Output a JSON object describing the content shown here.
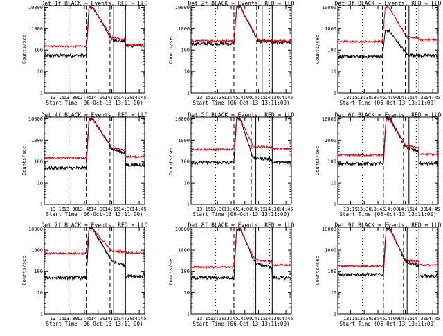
{
  "chart_data": {
    "type": "line",
    "grid_layout": [
      3,
      3
    ],
    "shared": {
      "xlabel": "Start Time (06-Oct-13 13:11:00)",
      "ylabel": "Counts/sec",
      "x_tick_labels": [
        "13:15",
        "13:30",
        "13:45",
        "14:00",
        "14:15",
        "14:30",
        "14:45"
      ],
      "x_ticks_min": [
        14,
        29,
        44,
        59,
        74,
        89,
        104
      ],
      "xlim_min": [
        0,
        110
      ],
      "y_tick_labels": [
        "1",
        "10",
        "100",
        "1000",
        "10000"
      ],
      "y_ticks": [
        1,
        10,
        100,
        1000,
        10000
      ],
      "ylim": [
        1,
        12000
      ],
      "yscale": "log",
      "dotted_lines_min": [
        27,
        86
      ],
      "dashed_lines_min": [
        46
      ],
      "solid_lines_min": [
        76,
        89
      ],
      "series_colors": {
        "events": "#000000",
        "lld": "#e0000f"
      }
    },
    "panels": [
      {
        "title": "Det 1f BLACK = Events, RED = LLD",
        "flare_start": 46,
        "dashed2": 72,
        "solid": 76,
        "events": {
          "pre": 55,
          "peak": 10000,
          "post": 300,
          "end": 160
        },
        "lld": {
          "pre": 150,
          "peak": 10000,
          "post": 400,
          "end": 180
        }
      },
      {
        "title": "Det 2f BLACK = Events, RED = LLD",
        "flare_start": 47,
        "dashed2": 72,
        "solid": 78,
        "events": {
          "pre": 200,
          "peak": 10000,
          "post": 250,
          "end": 230
        },
        "lld": {
          "pre": 270,
          "peak": 10000,
          "post": 280,
          "end": 270
        }
      },
      {
        "title": "Det 3f BLACK = Events, RED = LLD",
        "flare_start": 49,
        "dashed2": 74,
        "solid": 78,
        "events": {
          "pre": 50,
          "peak": 800,
          "post": 60,
          "end": 55
        },
        "lld": {
          "pre": 250,
          "peak": 10000,
          "post": 400,
          "end": 300
        }
      },
      {
        "title": "Det 4f BLACK = Events, RED = LLD",
        "flare_start": 46,
        "dashed2": 72,
        "solid": 76,
        "events": {
          "pre": 50,
          "peak": 10000,
          "post": 400,
          "end": 70
        },
        "lld": {
          "pre": 150,
          "peak": 10000,
          "post": 450,
          "end": 170
        }
      },
      {
        "title": "Det 5f BLACK = Events, RED = LLD",
        "flare_start": 47,
        "dashed2": 66,
        "solid": 71,
        "events": {
          "pre": 90,
          "peak": 10000,
          "post": 150,
          "end": 90
        },
        "lld": {
          "pre": 370,
          "peak": 10000,
          "post": 500,
          "end": 400
        }
      },
      {
        "title": "Det 6f BLACK = Events, RED = LLD",
        "flare_start": 50,
        "dashed2": 72,
        "solid": 78,
        "events": {
          "pre": 80,
          "peak": 10000,
          "post": 500,
          "end": 80
        },
        "lld": {
          "pre": 200,
          "peak": 10000,
          "post": 600,
          "end": 220
        }
      },
      {
        "title": "Det 7f BLACK = Events, RED = LLD",
        "flare_start": 46,
        "dashed2": 72,
        "solid": 76,
        "events": {
          "pre": 50,
          "peak": 10000,
          "post": 300,
          "end": 60
        },
        "lld": {
          "pre": 700,
          "peak": 10000,
          "post": 900,
          "end": 750
        }
      },
      {
        "title": "Det 8f BLACK = Events, RED = LLD",
        "flare_start": 47,
        "dashed2": 68,
        "solid": 71,
        "events": {
          "pre": 50,
          "peak": 10000,
          "post": 250,
          "end": 50
        },
        "lld": {
          "pre": 160,
          "peak": 10000,
          "post": 350,
          "end": 200
        }
      },
      {
        "title": "Det 9f BLACK = Events, RED = LLD",
        "flare_start": 50,
        "dashed2": 72,
        "solid": 76,
        "events": {
          "pre": 70,
          "peak": 10000,
          "post": 300,
          "end": 60
        },
        "lld": {
          "pre": 180,
          "peak": 10000,
          "post": 350,
          "end": 200
        }
      }
    ]
  }
}
